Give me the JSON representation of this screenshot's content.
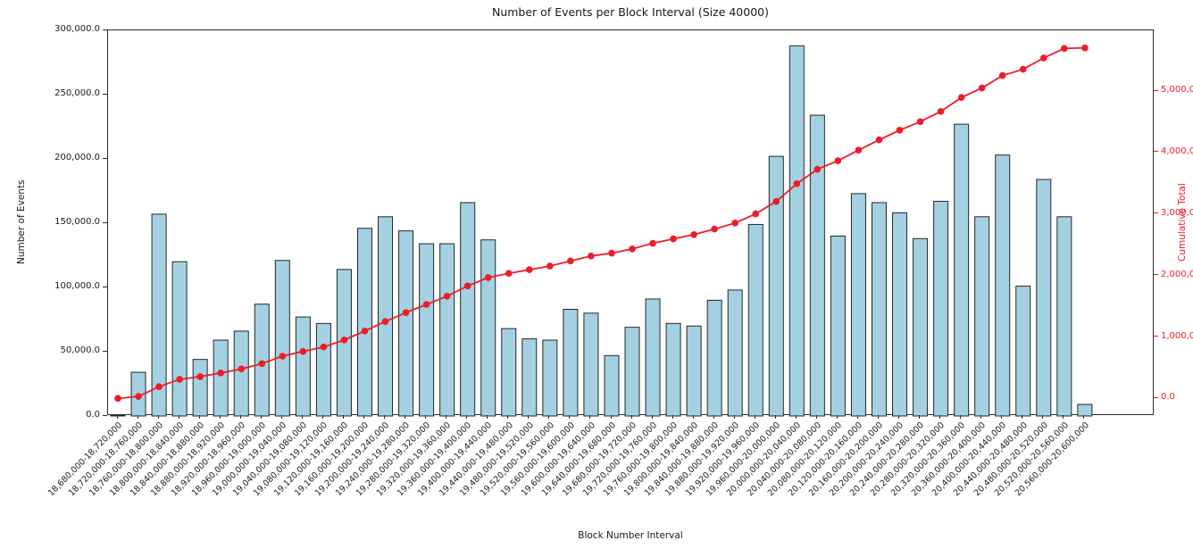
{
  "figure_bg": "#ffffff",
  "chart_data": {
    "type": "bar",
    "title": "Number of Events per Block Interval (Size 40000)",
    "xlabel": "Block Number Interval",
    "ylabel": "Number of Events",
    "ylabel_right": "Cumulative Total",
    "grid": false,
    "legend": "none",
    "ylim_left": [
      0,
      300000
    ],
    "y_axis_left": {
      "tick_values": [
        0,
        50000,
        100000,
        150000,
        200000,
        250000,
        300000
      ],
      "tick_labels": [
        "0.0",
        "50,000.0",
        "100,000.0",
        "150,000.0",
        "200,000.0",
        "250,000.0",
        "300,000.0"
      ]
    },
    "y_axis_right": {
      "tick_values": [
        0,
        1000000,
        2000000,
        3000000,
        4000000,
        5000000
      ],
      "tick_labels": [
        "0.0",
        "1,000,000.0",
        "2,000,000.0",
        "3,000,000.0",
        "4,000,000.0",
        "5,000,000.0"
      ],
      "margin_fraction": 0.05
    },
    "categories": [
      "18,680,000-18,720,000",
      "18,720,000-18,760,000",
      "18,760,000-18,800,000",
      "18,800,000-18,840,000",
      "18,840,000-18,880,000",
      "18,880,000-18,920,000",
      "18,920,000-18,960,000",
      "18,960,000-19,000,000",
      "19,000,000-19,040,000",
      "19,040,000-19,080,000",
      "19,080,000-19,120,000",
      "19,120,000-19,160,000",
      "19,160,000-19,200,000",
      "19,200,000-19,240,000",
      "19,240,000-19,280,000",
      "19,280,000-19,320,000",
      "19,320,000-19,360,000",
      "19,360,000-19,400,000",
      "19,400,000-19,440,000",
      "19,440,000-19,480,000",
      "19,480,000-19,520,000",
      "19,520,000-19,560,000",
      "19,560,000-19,600,000",
      "19,600,000-19,640,000",
      "19,640,000-19,680,000",
      "19,680,000-19,720,000",
      "19,720,000-19,760,000",
      "19,760,000-19,800,000",
      "19,800,000-19,840,000",
      "19,840,000-19,880,000",
      "19,880,000-19,920,000",
      "19,920,000-19,960,000",
      "19,960,000-20,000,000",
      "20,000,000-20,040,000",
      "20,040,000-20,080,000",
      "20,080,000-20,120,000",
      "20,120,000-20,160,000",
      "20,160,000-20,200,000",
      "20,200,000-20,240,000",
      "20,240,000-20,280,000",
      "20,280,000-20,320,000",
      "20,320,000-20,360,000",
      "20,360,000-20,400,000",
      "20,400,000-20,440,000",
      "20,440,000-20,480,000",
      "20,480,000-20,520,000",
      "20,520,000-20,560,000",
      "20,560,000-20,600,000"
    ],
    "series": [
      {
        "name": "Events per Interval",
        "type": "bar",
        "axis": "left",
        "color": "#a3d1e2",
        "edge_color": "#262626",
        "values": [
          500,
          34000,
          157000,
          120000,
          44000,
          59000,
          66000,
          87000,
          121000,
          77000,
          72000,
          114000,
          146000,
          155000,
          144000,
          134000,
          134000,
          166000,
          137000,
          68000,
          60000,
          59000,
          83000,
          80000,
          47000,
          69000,
          91000,
          72000,
          70000,
          90000,
          98000,
          149000,
          202000,
          288000,
          234000,
          140000,
          173000,
          166000,
          158000,
          138000,
          167000,
          227000,
          155000,
          203000,
          101000,
          184000,
          155000,
          9000
        ]
      },
      {
        "name": "Cumulative Total",
        "type": "line",
        "axis": "right",
        "color": "#ee1c27",
        "marker": "circle",
        "values": [
          500,
          34500,
          191500,
          311500,
          355500,
          414500,
          480500,
          567500,
          688500,
          765500,
          837500,
          951500,
          1097500,
          1252500,
          1396500,
          1530500,
          1664500,
          1830500,
          1967500,
          2035500,
          2095500,
          2154500,
          2237500,
          2317500,
          2364500,
          2433500,
          2524500,
          2596500,
          2666500,
          2756500,
          2854500,
          3003500,
          3205500,
          3493500,
          3727500,
          3867500,
          4040500,
          4206500,
          4364500,
          4502500,
          4669500,
          4896500,
          5051500,
          5254500,
          5355500,
          5539500,
          5694500,
          5703500
        ]
      }
    ]
  }
}
